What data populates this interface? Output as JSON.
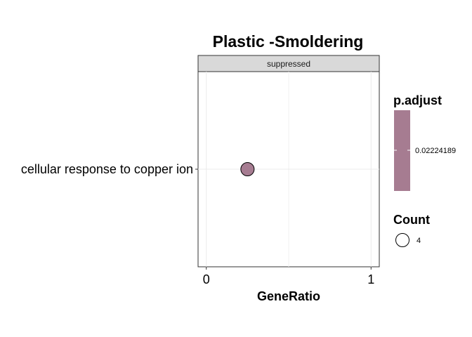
{
  "chart_data": {
    "type": "scatter",
    "title": "Plastic -Smoldering",
    "facet": "suppressed",
    "xlabel": "GeneRatio",
    "ylabel": "",
    "xlim": [
      -0.05,
      1.05
    ],
    "xticks": [
      0,
      1
    ],
    "categories": [
      "cellular response to copper ion"
    ],
    "points": [
      {
        "term": "cellular response to copper ion",
        "x": 0.25,
        "count": 4,
        "p_adjust": 0.02224189
      }
    ],
    "grid": true,
    "legend_position": "right",
    "color_legend": {
      "title": "p.adjust",
      "values": [
        "0.02224189"
      ],
      "color": "#A67C91"
    },
    "size_legend": {
      "title": "Count",
      "values": [
        "4"
      ]
    }
  }
}
